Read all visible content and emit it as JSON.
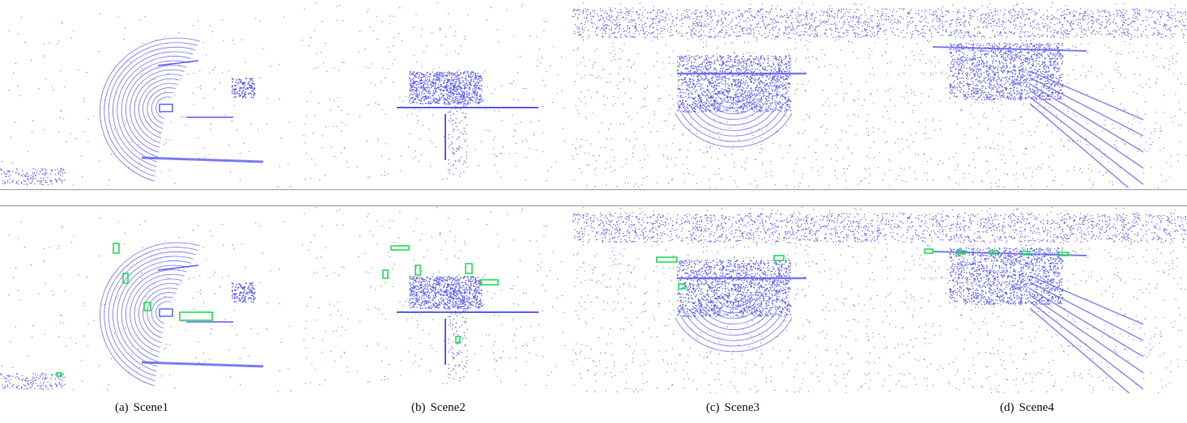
{
  "figure": {
    "point_color": "#5c5cf0",
    "box_color": "#22dd55",
    "rows": [
      "point-cloud",
      "point-cloud-with-detections"
    ],
    "captions": [
      {
        "label": "(a)",
        "text": "Scene1"
      },
      {
        "label": "(b)",
        "text": "Scene2"
      },
      {
        "label": "(c)",
        "text": "Scene3"
      },
      {
        "label": "(d)",
        "text": "Scene4"
      }
    ]
  }
}
